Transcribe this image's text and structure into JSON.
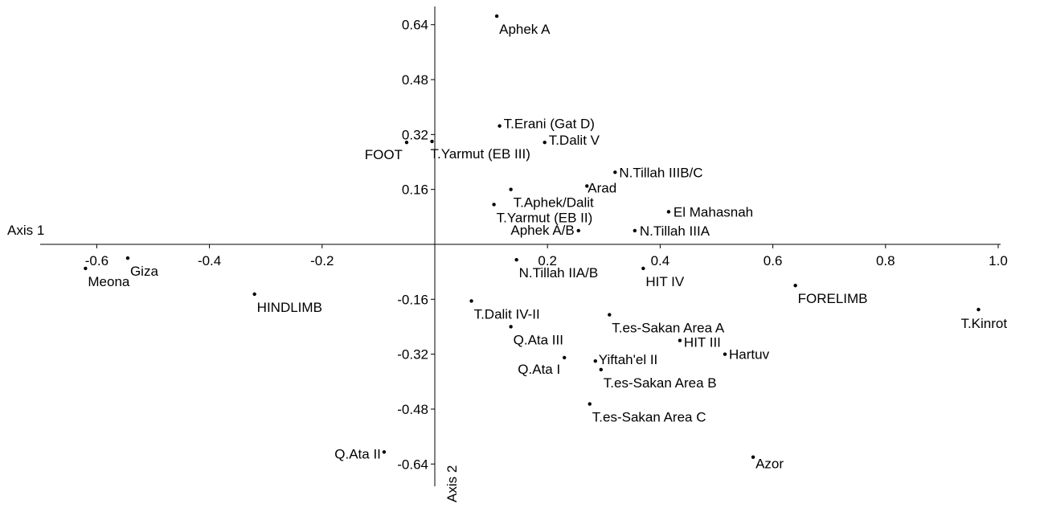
{
  "chart_data": {
    "type": "scatter",
    "xlabel": "Axis 1",
    "ylabel": "Axis 2",
    "xlim": [
      -0.7,
      1.0
    ],
    "ylim": [
      -0.68,
      0.68
    ],
    "x_ticks": [
      {
        "v": -0.6,
        "t": "-0.6"
      },
      {
        "v": -0.4,
        "t": "-0.4"
      },
      {
        "v": -0.2,
        "t": "-0.2"
      },
      {
        "v": 0.2,
        "t": "0.2"
      },
      {
        "v": 0.4,
        "t": "0.4"
      },
      {
        "v": 0.6,
        "t": "0.6"
      },
      {
        "v": 0.8,
        "t": "0.8"
      },
      {
        "v": 1.0,
        "t": "1.0"
      }
    ],
    "y_ticks": [
      {
        "v": 0.64,
        "t": "0.64"
      },
      {
        "v": 0.48,
        "t": "0.48"
      },
      {
        "v": 0.32,
        "t": "0.32"
      },
      {
        "v": 0.16,
        "t": "0.16"
      },
      {
        "v": -0.16,
        "t": "-0.16"
      },
      {
        "v": -0.32,
        "t": "-0.32"
      },
      {
        "v": -0.48,
        "t": "-0.48"
      },
      {
        "v": -0.64,
        "t": "-0.64"
      }
    ],
    "points": [
      {
        "label": "Aphek A",
        "x": 0.11,
        "y": 0.665
      },
      {
        "label": "T.Erani (Gat D)",
        "x": 0.115,
        "y": 0.345
      },
      {
        "label": "T.Dalit V",
        "x": 0.195,
        "y": 0.297
      },
      {
        "label": "FOOT",
        "x": -0.05,
        "y": 0.297
      },
      {
        "label": "T.Yarmut (EB III)",
        "x": -0.005,
        "y": 0.3
      },
      {
        "label": "N.Tillah IIIB/C",
        "x": 0.32,
        "y": 0.21
      },
      {
        "label": "Arad",
        "x": 0.27,
        "y": 0.17
      },
      {
        "label": "T.Aphek/Dalit",
        "x": 0.135,
        "y": 0.16
      },
      {
        "label": "T.Yarmut (EB II)",
        "x": 0.105,
        "y": 0.116
      },
      {
        "label": "El Mahasnah",
        "x": 0.415,
        "y": 0.095
      },
      {
        "label": "Aphek A/B",
        "x": 0.255,
        "y": 0.04
      },
      {
        "label": "N.Tillah IIIA",
        "x": 0.355,
        "y": 0.04
      },
      {
        "label": "N.Tillah IIA/B",
        "x": 0.145,
        "y": -0.045
      },
      {
        "label": "HIT IV",
        "x": 0.37,
        "y": -0.07
      },
      {
        "label": "Giza",
        "x": -0.545,
        "y": -0.04
      },
      {
        "label": "Meona",
        "x": -0.62,
        "y": -0.07
      },
      {
        "label": "HINDLIMB",
        "x": -0.32,
        "y": -0.145
      },
      {
        "label": "FORELIMB",
        "x": 0.64,
        "y": -0.12
      },
      {
        "label": "T.Kinrot",
        "x": 0.965,
        "y": -0.19
      },
      {
        "label": "T.Dalit IV-II",
        "x": 0.065,
        "y": -0.165
      },
      {
        "label": "T.es-Sakan Area A",
        "x": 0.31,
        "y": -0.205
      },
      {
        "label": "Q.Ata III",
        "x": 0.135,
        "y": -0.24
      },
      {
        "label": "HIT III",
        "x": 0.435,
        "y": -0.28
      },
      {
        "label": "Hartuv",
        "x": 0.515,
        "y": -0.32
      },
      {
        "label": "Yiftah'el II",
        "x": 0.285,
        "y": -0.34
      },
      {
        "label": "Q.Ata I",
        "x": 0.23,
        "y": -0.33
      },
      {
        "label": "T.es-Sakan Area B",
        "x": 0.295,
        "y": -0.365
      },
      {
        "label": "T.es-Sakan Area C",
        "x": 0.275,
        "y": -0.465
      },
      {
        "label": "Q.Ata II",
        "x": -0.09,
        "y": -0.605
      },
      {
        "label": "Azor",
        "x": 0.565,
        "y": -0.62
      }
    ]
  }
}
